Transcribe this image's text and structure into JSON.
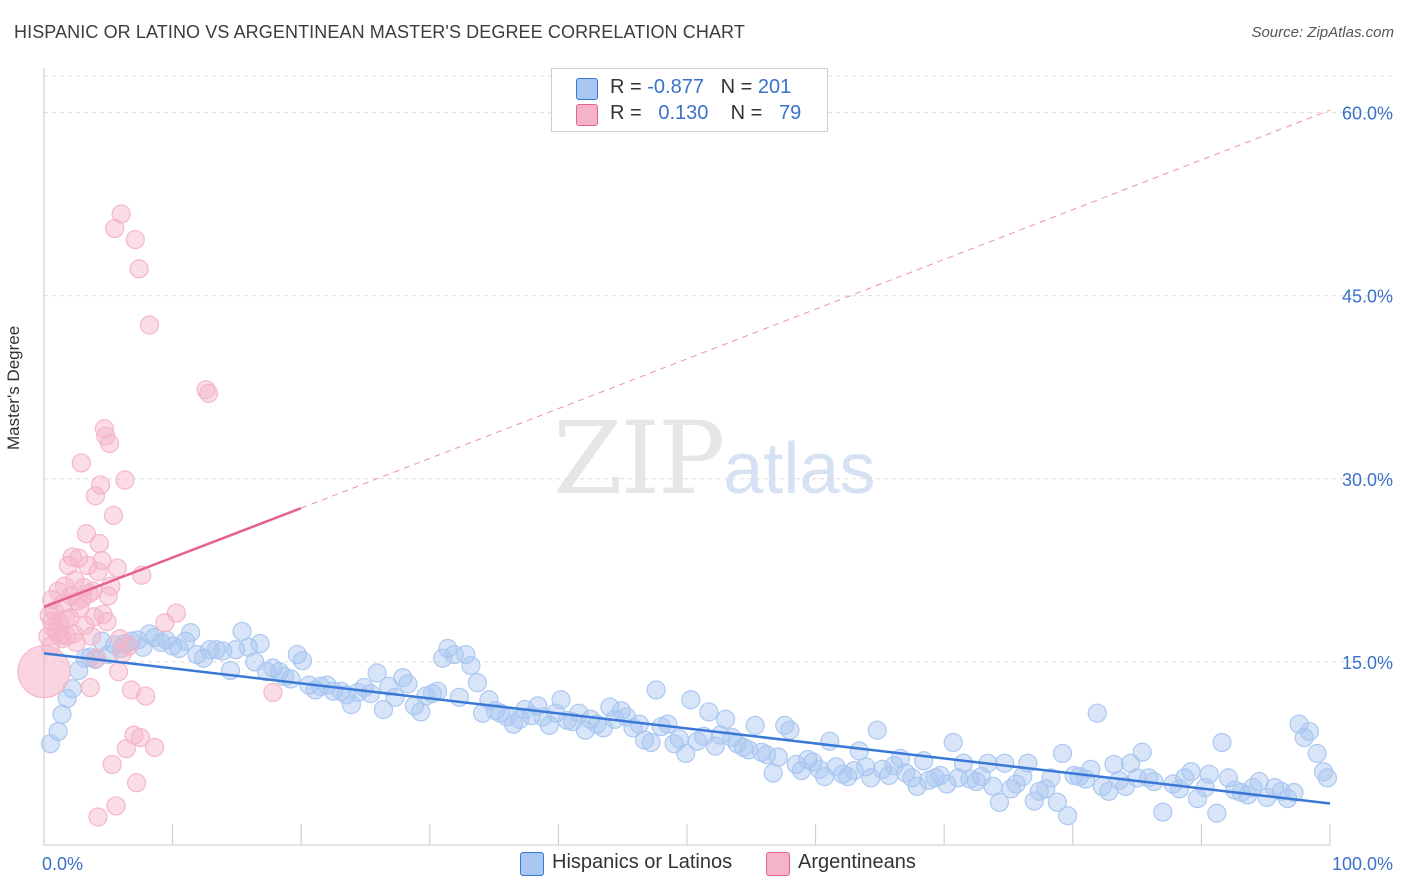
{
  "title": "HISPANIC OR LATINO VS ARGENTINEAN MASTER'S DEGREE CORRELATION CHART",
  "source": "Source: ZipAtlas.com",
  "watermark": {
    "zip": "ZIP",
    "atlas": "atlas"
  },
  "legend": {
    "rows": [
      {
        "r_label": "R =",
        "r_value": "-0.877",
        "n_label": "N =",
        "n_value": "201",
        "color": "#a8c6f0"
      },
      {
        "r_label": "R =",
        "r_value": "0.130",
        "n_label": "N =",
        "n_value": "79",
        "color": "#f5b3c8"
      }
    ]
  },
  "bottom_legend": [
    {
      "label": "Hispanics or Latinos",
      "color": "#a8c6f0"
    },
    {
      "label": "Argentineans",
      "color": "#f5b3c8"
    }
  ],
  "chart_data": {
    "type": "scatter",
    "title": "HISPANIC OR LATINO VS ARGENTINEAN MASTER'S DEGREE CORRELATION CHART",
    "ylabel": "Master's Degree",
    "xlabel": "",
    "xlim": [
      0,
      100
    ],
    "ylim": [
      0,
      63
    ],
    "x_tick_labels": [
      "0.0%",
      "100.0%"
    ],
    "y_ticks": [
      15,
      30,
      45,
      60
    ],
    "y_tick_labels": [
      "15.0%",
      "30.0%",
      "45.0%",
      "60.0%"
    ],
    "grid": true,
    "legend_position": "top-center",
    "series": [
      {
        "name": "Hispanics or Latinos",
        "color": "#3a78d6",
        "fill": "#a8c6f0",
        "trend": {
          "x": [
            0,
            100
          ],
          "y": [
            15.7,
            3.4
          ],
          "style": "solid"
        },
        "points": [
          [
            0.5,
            8.3
          ],
          [
            1.1,
            9.3
          ],
          [
            1.4,
            10.7
          ],
          [
            1.8,
            12.0
          ],
          [
            2.2,
            12.8
          ],
          [
            2.7,
            14.3
          ],
          [
            3.2,
            15.3
          ],
          [
            3.6,
            15.4
          ],
          [
            4.0,
            15.2
          ],
          [
            4.5,
            16.7
          ],
          [
            5.0,
            15.6
          ],
          [
            5.5,
            16.4
          ],
          [
            6.0,
            16.1
          ],
          [
            6.3,
            16.5
          ],
          [
            6.8,
            16.7
          ],
          [
            7.3,
            16.8
          ],
          [
            7.7,
            16.2
          ],
          [
            8.2,
            17.3
          ],
          [
            8.6,
            17.0
          ],
          [
            9.1,
            16.6
          ],
          [
            9.5,
            16.8
          ],
          [
            10.0,
            16.3
          ],
          [
            10.5,
            16.1
          ],
          [
            11.0,
            16.7
          ],
          [
            11.4,
            17.4
          ],
          [
            11.9,
            15.6
          ],
          [
            12.4,
            15.3
          ],
          [
            12.9,
            16.0
          ],
          [
            13.4,
            16.0
          ],
          [
            13.9,
            15.9
          ],
          [
            14.5,
            14.3
          ],
          [
            14.9,
            16.0
          ],
          [
            15.4,
            17.5
          ],
          [
            15.9,
            16.2
          ],
          [
            16.4,
            15.0
          ],
          [
            16.8,
            16.5
          ],
          [
            17.3,
            14.2
          ],
          [
            17.8,
            14.5
          ],
          [
            18.3,
            14.2
          ],
          [
            18.7,
            13.8
          ],
          [
            19.2,
            13.6
          ],
          [
            19.7,
            15.6
          ],
          [
            20.1,
            15.1
          ],
          [
            20.6,
            13.1
          ],
          [
            21.1,
            12.7
          ],
          [
            21.5,
            13.0
          ],
          [
            22.0,
            13.1
          ],
          [
            22.5,
            12.6
          ],
          [
            23.1,
            12.6
          ],
          [
            23.5,
            12.3
          ],
          [
            23.9,
            11.5
          ],
          [
            24.4,
            12.5
          ],
          [
            24.9,
            12.9
          ],
          [
            25.4,
            12.4
          ],
          [
            25.9,
            14.1
          ],
          [
            26.4,
            11.1
          ],
          [
            26.8,
            13.0
          ],
          [
            27.3,
            12.1
          ],
          [
            27.9,
            13.7
          ],
          [
            28.3,
            13.2
          ],
          [
            28.8,
            11.4
          ],
          [
            29.3,
            10.9
          ],
          [
            29.7,
            12.2
          ],
          [
            30.2,
            12.4
          ],
          [
            30.6,
            12.6
          ],
          [
            31.0,
            15.3
          ],
          [
            31.4,
            16.1
          ],
          [
            31.9,
            15.6
          ],
          [
            32.3,
            12.1
          ],
          [
            32.8,
            15.6
          ],
          [
            33.2,
            14.7
          ],
          [
            33.7,
            13.3
          ],
          [
            34.1,
            10.8
          ],
          [
            34.6,
            11.9
          ],
          [
            35.1,
            11.0
          ],
          [
            35.5,
            10.8
          ],
          [
            36.0,
            10.5
          ],
          [
            36.5,
            9.9
          ],
          [
            37.0,
            10.3
          ],
          [
            37.4,
            11.1
          ],
          [
            37.9,
            10.6
          ],
          [
            38.4,
            11.4
          ],
          [
            38.8,
            10.5
          ],
          [
            39.3,
            9.8
          ],
          [
            39.8,
            10.8
          ],
          [
            40.2,
            11.9
          ],
          [
            40.7,
            10.2
          ],
          [
            41.1,
            10.1
          ],
          [
            41.6,
            10.8
          ],
          [
            42.1,
            9.4
          ],
          [
            42.5,
            10.3
          ],
          [
            43.0,
            9.9
          ],
          [
            43.5,
            9.6
          ],
          [
            44.0,
            11.3
          ],
          [
            44.4,
            10.3
          ],
          [
            44.9,
            11.0
          ],
          [
            45.3,
            10.5
          ],
          [
            45.8,
            9.6
          ],
          [
            46.3,
            9.9
          ],
          [
            46.7,
            8.6
          ],
          [
            47.2,
            8.4
          ],
          [
            47.6,
            12.7
          ],
          [
            48.0,
            9.7
          ],
          [
            48.5,
            9.9
          ],
          [
            49.0,
            8.3
          ],
          [
            49.4,
            8.7
          ],
          [
            49.9,
            7.5
          ],
          [
            50.3,
            11.9
          ],
          [
            50.8,
            8.5
          ],
          [
            51.3,
            8.9
          ],
          [
            51.7,
            10.9
          ],
          [
            52.2,
            8.1
          ],
          [
            52.6,
            9.0
          ],
          [
            53.0,
            10.3
          ],
          [
            53.5,
            8.8
          ],
          [
            53.9,
            8.3
          ],
          [
            54.4,
            8.0
          ],
          [
            54.8,
            7.8
          ],
          [
            55.3,
            9.8
          ],
          [
            55.8,
            7.6
          ],
          [
            56.2,
            7.4
          ],
          [
            56.7,
            5.9
          ],
          [
            57.1,
            7.2
          ],
          [
            57.6,
            9.8
          ],
          [
            58.0,
            9.4
          ],
          [
            58.5,
            6.6
          ],
          [
            58.9,
            6.1
          ],
          [
            59.4,
            7.0
          ],
          [
            59.8,
            6.8
          ],
          [
            60.3,
            6.2
          ],
          [
            60.7,
            5.6
          ],
          [
            61.1,
            8.5
          ],
          [
            61.6,
            6.4
          ],
          [
            62.1,
            5.8
          ],
          [
            62.5,
            5.6
          ],
          [
            63.0,
            6.1
          ],
          [
            63.4,
            7.7
          ],
          [
            63.9,
            6.4
          ],
          [
            64.3,
            5.5
          ],
          [
            64.8,
            9.4
          ],
          [
            65.2,
            6.2
          ],
          [
            65.7,
            5.7
          ],
          [
            66.1,
            6.5
          ],
          [
            66.6,
            7.1
          ],
          [
            67.0,
            5.9
          ],
          [
            67.5,
            5.5
          ],
          [
            67.9,
            4.8
          ],
          [
            68.4,
            6.9
          ],
          [
            68.8,
            5.3
          ],
          [
            69.3,
            5.5
          ],
          [
            69.7,
            5.7
          ],
          [
            70.2,
            5.0
          ],
          [
            70.7,
            8.4
          ],
          [
            71.1,
            5.5
          ],
          [
            71.5,
            6.7
          ],
          [
            72.0,
            5.4
          ],
          [
            72.5,
            5.2
          ],
          [
            72.9,
            5.6
          ],
          [
            73.4,
            6.7
          ],
          [
            73.8,
            4.8
          ],
          [
            74.3,
            3.5
          ],
          [
            74.7,
            6.7
          ],
          [
            75.2,
            4.6
          ],
          [
            75.6,
            5.0
          ],
          [
            76.1,
            5.6
          ],
          [
            76.5,
            6.7
          ],
          [
            77.0,
            3.6
          ],
          [
            77.4,
            4.4
          ],
          [
            77.9,
            4.6
          ],
          [
            78.3,
            5.5
          ],
          [
            78.8,
            3.5
          ],
          [
            79.2,
            7.5
          ],
          [
            79.6,
            2.4
          ],
          [
            80.1,
            5.7
          ],
          [
            80.5,
            5.6
          ],
          [
            81.0,
            5.4
          ],
          [
            81.4,
            6.2
          ],
          [
            81.9,
            10.8
          ],
          [
            82.3,
            4.8
          ],
          [
            82.8,
            4.4
          ],
          [
            83.2,
            6.6
          ],
          [
            83.6,
            5.3
          ],
          [
            84.1,
            4.8
          ],
          [
            84.5,
            6.7
          ],
          [
            85.0,
            5.5
          ],
          [
            85.4,
            7.6
          ],
          [
            85.9,
            5.5
          ],
          [
            86.3,
            5.2
          ],
          [
            87.0,
            2.7
          ],
          [
            87.8,
            5.0
          ],
          [
            88.3,
            4.6
          ],
          [
            88.7,
            5.5
          ],
          [
            89.2,
            6.0
          ],
          [
            89.7,
            3.8
          ],
          [
            90.3,
            4.7
          ],
          [
            90.6,
            5.8
          ],
          [
            91.2,
            2.6
          ],
          [
            91.6,
            8.4
          ],
          [
            92.1,
            5.5
          ],
          [
            92.6,
            4.5
          ],
          [
            93.1,
            4.3
          ],
          [
            93.6,
            4.1
          ],
          [
            94.0,
            4.7
          ],
          [
            94.5,
            5.2
          ],
          [
            95.1,
            3.9
          ],
          [
            95.7,
            4.7
          ],
          [
            96.2,
            4.4
          ],
          [
            96.7,
            3.8
          ],
          [
            97.2,
            4.3
          ],
          [
            97.6,
            9.9
          ],
          [
            98.0,
            8.8
          ],
          [
            98.4,
            9.3
          ],
          [
            99.0,
            7.5
          ],
          [
            99.5,
            6.0
          ],
          [
            99.8,
            5.5
          ]
        ]
      },
      {
        "name": "Argentineans",
        "color": "#e5618f",
        "fill": "#f5b3c8",
        "trend": {
          "x": [
            0,
            20
          ],
          "y": [
            19.5,
            27.6
          ],
          "style": "solid"
        },
        "trend_extended": {
          "x": [
            20,
            100
          ],
          "y": [
            27.6,
            60.2
          ],
          "style": "dashed"
        },
        "points": [
          [
            0.3,
            17.1
          ],
          [
            0.4,
            18.8
          ],
          [
            0.5,
            16.3
          ],
          [
            0.6,
            20.1
          ],
          [
            0.7,
            17.8
          ],
          [
            0.8,
            19.2
          ],
          [
            1.0,
            17.4
          ],
          [
            1.1,
            20.8
          ],
          [
            1.2,
            18.2
          ],
          [
            1.3,
            17.2
          ],
          [
            1.4,
            16.9
          ],
          [
            1.5,
            19.8
          ],
          [
            1.6,
            21.2
          ],
          [
            1.7,
            18.5
          ],
          [
            1.8,
            17.1
          ],
          [
            1.9,
            22.9
          ],
          [
            2.0,
            18.6
          ],
          [
            2.1,
            20.4
          ],
          [
            2.2,
            23.6
          ],
          [
            2.3,
            17.3
          ],
          [
            2.4,
            21.7
          ],
          [
            2.5,
            16.6
          ],
          [
            2.7,
            23.5
          ],
          [
            2.8,
            19.4
          ],
          [
            2.9,
            31.3
          ],
          [
            3.0,
            20.2
          ],
          [
            3.2,
            18.0
          ],
          [
            3.3,
            25.5
          ],
          [
            3.4,
            22.9
          ],
          [
            3.5,
            20.6
          ],
          [
            3.6,
            12.9
          ],
          [
            3.7,
            17.1
          ],
          [
            3.8,
            20.8
          ],
          [
            3.9,
            18.7
          ],
          [
            4.0,
            28.6
          ],
          [
            4.1,
            15.3
          ],
          [
            4.2,
            22.4
          ],
          [
            4.3,
            24.7
          ],
          [
            4.4,
            29.5
          ],
          [
            4.5,
            23.3
          ],
          [
            4.6,
            18.9
          ],
          [
            4.7,
            34.1
          ],
          [
            4.8,
            33.5
          ],
          [
            5.0,
            20.4
          ],
          [
            5.1,
            32.9
          ],
          [
            5.2,
            21.2
          ],
          [
            5.3,
            6.6
          ],
          [
            5.4,
            27.0
          ],
          [
            5.5,
            50.5
          ],
          [
            5.6,
            3.2
          ],
          [
            5.7,
            22.7
          ],
          [
            5.8,
            14.2
          ],
          [
            6.0,
            51.7
          ],
          [
            6.1,
            15.7
          ],
          [
            6.3,
            29.9
          ],
          [
            6.4,
            7.9
          ],
          [
            6.6,
            16.3
          ],
          [
            6.8,
            12.7
          ],
          [
            7.0,
            9.0
          ],
          [
            7.1,
            49.6
          ],
          [
            7.2,
            5.1
          ],
          [
            7.4,
            47.2
          ],
          [
            7.5,
            8.8
          ],
          [
            7.6,
            22.1
          ],
          [
            7.9,
            12.2
          ],
          [
            8.2,
            42.6
          ],
          [
            8.6,
            8.0
          ],
          [
            9.4,
            18.2
          ],
          [
            10.3,
            19.0
          ],
          [
            12.6,
            37.3
          ],
          [
            12.8,
            37.0
          ],
          [
            17.8,
            12.5
          ],
          [
            0.6,
            18.3
          ],
          [
            2.6,
            20.0
          ],
          [
            3.1,
            21.1
          ],
          [
            4.9,
            18.3
          ],
          [
            5.9,
            16.9
          ],
          [
            4.2,
            2.3
          ],
          [
            0.0,
            14.2
          ]
        ]
      }
    ]
  }
}
